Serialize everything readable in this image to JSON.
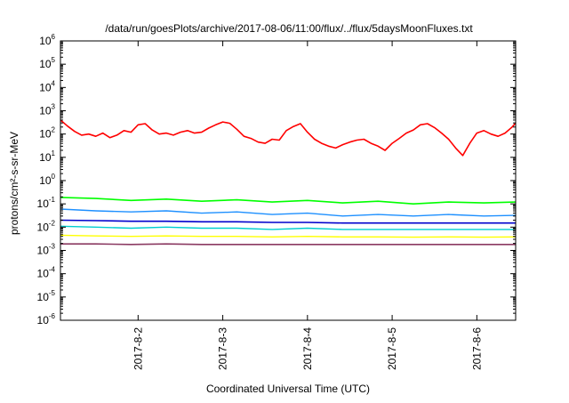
{
  "chart_data": {
    "type": "line",
    "title": "/data/run/goesPlots/archive/2017-08-06/11:00/flux/../flux/5daysMoonFluxes.txt",
    "xlabel": "Coordinated Universal Time (UTC)",
    "ylabel": "protons/cm²-s-sr-MeV",
    "yscale": "log",
    "ylim": [
      1e-06,
      1000000.0
    ],
    "y_ticks": [
      {
        "value": 1e-06,
        "base": "10",
        "exp": "-6"
      },
      {
        "value": 1e-05,
        "base": "10",
        "exp": "-5"
      },
      {
        "value": 0.0001,
        "base": "10",
        "exp": "-4"
      },
      {
        "value": 0.001,
        "base": "10",
        "exp": "-3"
      },
      {
        "value": 0.01,
        "base": "10",
        "exp": "-2"
      },
      {
        "value": 0.1,
        "base": "10",
        "exp": "-1"
      },
      {
        "value": 1,
        "base": "10",
        "exp": "0"
      },
      {
        "value": 10,
        "base": "10",
        "exp": "1"
      },
      {
        "value": 100,
        "base": "10",
        "exp": "2"
      },
      {
        "value": 1000,
        "base": "10",
        "exp": "3"
      },
      {
        "value": 10000,
        "base": "10",
        "exp": "4"
      },
      {
        "value": 100000,
        "base": "10",
        "exp": "5"
      },
      {
        "value": 1000000,
        "base": "10",
        "exp": "6"
      }
    ],
    "xlim": [
      "2017-08-01 02:00",
      "2017-08-06 11:00"
    ],
    "x_ticks": [
      {
        "value": "2017-08-02 00:00",
        "label": "2017-8-2"
      },
      {
        "value": "2017-08-03 00:00",
        "label": "2017-8-3"
      },
      {
        "value": "2017-08-04 00:00",
        "label": "2017-8-4"
      },
      {
        "value": "2017-08-05 00:00",
        "label": "2017-8-5"
      },
      {
        "value": "2017-08-06 00:00",
        "label": "2017-8-6"
      }
    ],
    "grid": false,
    "series": [
      {
        "color": "#ff0000",
        "stroke_width": 1.6,
        "x": [
          "2017-08-01 02:00",
          "2017-08-01 04:00",
          "2017-08-01 06:00",
          "2017-08-01 08:00",
          "2017-08-01 10:00",
          "2017-08-01 12:00",
          "2017-08-01 14:00",
          "2017-08-01 16:00",
          "2017-08-01 18:00",
          "2017-08-01 20:00",
          "2017-08-01 22:00",
          "2017-08-02 00:00",
          "2017-08-02 02:00",
          "2017-08-02 04:00",
          "2017-08-02 06:00",
          "2017-08-02 08:00",
          "2017-08-02 10:00",
          "2017-08-02 12:00",
          "2017-08-02 14:00",
          "2017-08-02 16:00",
          "2017-08-02 18:00",
          "2017-08-02 20:00",
          "2017-08-02 22:00",
          "2017-08-03 00:00",
          "2017-08-03 02:00",
          "2017-08-03 04:00",
          "2017-08-03 06:00",
          "2017-08-03 08:00",
          "2017-08-03 10:00",
          "2017-08-03 12:00",
          "2017-08-03 14:00",
          "2017-08-03 16:00",
          "2017-08-03 18:00",
          "2017-08-03 20:00",
          "2017-08-03 22:00",
          "2017-08-04 00:00",
          "2017-08-04 02:00",
          "2017-08-04 04:00",
          "2017-08-04 06:00",
          "2017-08-04 08:00",
          "2017-08-04 10:00",
          "2017-08-04 12:00",
          "2017-08-04 14:00",
          "2017-08-04 16:00",
          "2017-08-04 18:00",
          "2017-08-04 20:00",
          "2017-08-04 22:00",
          "2017-08-05 00:00",
          "2017-08-05 02:00",
          "2017-08-05 04:00",
          "2017-08-05 06:00",
          "2017-08-05 08:00",
          "2017-08-05 10:00",
          "2017-08-05 12:00",
          "2017-08-05 14:00",
          "2017-08-05 16:00",
          "2017-08-05 18:00",
          "2017-08-05 20:00",
          "2017-08-05 22:00",
          "2017-08-06 00:00",
          "2017-08-06 02:00",
          "2017-08-06 04:00",
          "2017-08-06 06:00",
          "2017-08-06 08:00",
          "2017-08-06 10:00",
          "2017-08-06 11:00"
        ],
        "y": [
          400,
          220,
          130,
          90,
          100,
          80,
          110,
          70,
          90,
          140,
          120,
          250,
          280,
          150,
          100,
          110,
          90,
          120,
          140,
          110,
          120,
          180,
          250,
          330,
          290,
          160,
          80,
          65,
          45,
          40,
          60,
          55,
          140,
          210,
          280,
          120,
          60,
          40,
          30,
          25,
          35,
          45,
          55,
          60,
          40,
          30,
          20,
          40,
          65,
          110,
          150,
          250,
          280,
          190,
          110,
          60,
          25,
          12,
          40,
          110,
          140,
          100,
          80,
          110,
          200,
          300
        ]
      },
      {
        "color": "#00ff00",
        "stroke_width": 1.6,
        "x": [
          "2017-08-01 02:00",
          "2017-08-01 12:00",
          "2017-08-01 22:00",
          "2017-08-02 08:00",
          "2017-08-02 18:00",
          "2017-08-03 04:00",
          "2017-08-03 14:00",
          "2017-08-04 00:00",
          "2017-08-04 10:00",
          "2017-08-04 20:00",
          "2017-08-05 06:00",
          "2017-08-05 16:00",
          "2017-08-06 02:00",
          "2017-08-06 11:00"
        ],
        "y": [
          0.19,
          0.17,
          0.14,
          0.16,
          0.13,
          0.15,
          0.12,
          0.14,
          0.11,
          0.13,
          0.1,
          0.12,
          0.11,
          0.12
        ]
      },
      {
        "color": "#1e90ff",
        "stroke_width": 1.4,
        "x": [
          "2017-08-01 02:00",
          "2017-08-01 12:00",
          "2017-08-01 22:00",
          "2017-08-02 08:00",
          "2017-08-02 18:00",
          "2017-08-03 04:00",
          "2017-08-03 14:00",
          "2017-08-04 00:00",
          "2017-08-04 10:00",
          "2017-08-04 20:00",
          "2017-08-05 06:00",
          "2017-08-05 16:00",
          "2017-08-06 02:00",
          "2017-08-06 11:00"
        ],
        "y": [
          0.06,
          0.05,
          0.045,
          0.05,
          0.04,
          0.045,
          0.035,
          0.04,
          0.03,
          0.035,
          0.03,
          0.035,
          0.03,
          0.032
        ]
      },
      {
        "color": "#00ced1",
        "stroke_width": 1.4,
        "x": [
          "2017-08-01 02:00",
          "2017-08-01 12:00",
          "2017-08-01 22:00",
          "2017-08-02 08:00",
          "2017-08-02 18:00",
          "2017-08-03 04:00",
          "2017-08-03 14:00",
          "2017-08-04 00:00",
          "2017-08-04 10:00",
          "2017-08-04 20:00",
          "2017-08-05 06:00",
          "2017-08-05 16:00",
          "2017-08-06 02:00",
          "2017-08-06 11:00"
        ],
        "y": [
          0.011,
          0.01,
          0.009,
          0.01,
          0.009,
          0.009,
          0.008,
          0.009,
          0.008,
          0.008,
          0.008,
          0.008,
          0.008,
          0.008
        ]
      },
      {
        "color": "#0000cd",
        "stroke_width": 1.6,
        "x": [
          "2017-08-01 02:00",
          "2017-08-01 12:00",
          "2017-08-01 22:00",
          "2017-08-02 08:00",
          "2017-08-02 18:00",
          "2017-08-03 04:00",
          "2017-08-03 14:00",
          "2017-08-04 00:00",
          "2017-08-04 10:00",
          "2017-08-04 20:00",
          "2017-08-05 06:00",
          "2017-08-05 16:00",
          "2017-08-06 02:00",
          "2017-08-06 11:00"
        ],
        "y": [
          0.02,
          0.019,
          0.018,
          0.018,
          0.017,
          0.017,
          0.016,
          0.016,
          0.015,
          0.015,
          0.015,
          0.015,
          0.015,
          0.015
        ]
      },
      {
        "color": "#ffff00",
        "stroke_width": 1.4,
        "x": [
          "2017-08-01 02:00",
          "2017-08-01 12:00",
          "2017-08-01 22:00",
          "2017-08-02 08:00",
          "2017-08-02 18:00",
          "2017-08-03 04:00",
          "2017-08-03 14:00",
          "2017-08-04 00:00",
          "2017-08-04 10:00",
          "2017-08-04 20:00",
          "2017-08-05 06:00",
          "2017-08-05 16:00",
          "2017-08-06 02:00",
          "2017-08-06 11:00"
        ],
        "y": [
          0.0045,
          0.0042,
          0.004,
          0.0042,
          0.004,
          0.004,
          0.0038,
          0.004,
          0.0038,
          0.0038,
          0.0037,
          0.0038,
          0.0037,
          0.0038
        ]
      },
      {
        "color": "#8b3a62",
        "stroke_width": 1.6,
        "x": [
          "2017-08-01 02:00",
          "2017-08-01 12:00",
          "2017-08-01 22:00",
          "2017-08-02 08:00",
          "2017-08-02 18:00",
          "2017-08-03 04:00",
          "2017-08-03 14:00",
          "2017-08-04 00:00",
          "2017-08-04 10:00",
          "2017-08-04 20:00",
          "2017-08-05 06:00",
          "2017-08-05 16:00",
          "2017-08-06 02:00",
          "2017-08-06 11:00"
        ],
        "y": [
          0.0019,
          0.0019,
          0.0018,
          0.0019,
          0.0018,
          0.0018,
          0.0018,
          0.0018,
          0.0018,
          0.0018,
          0.0018,
          0.0018,
          0.0018,
          0.0018
        ]
      }
    ]
  }
}
